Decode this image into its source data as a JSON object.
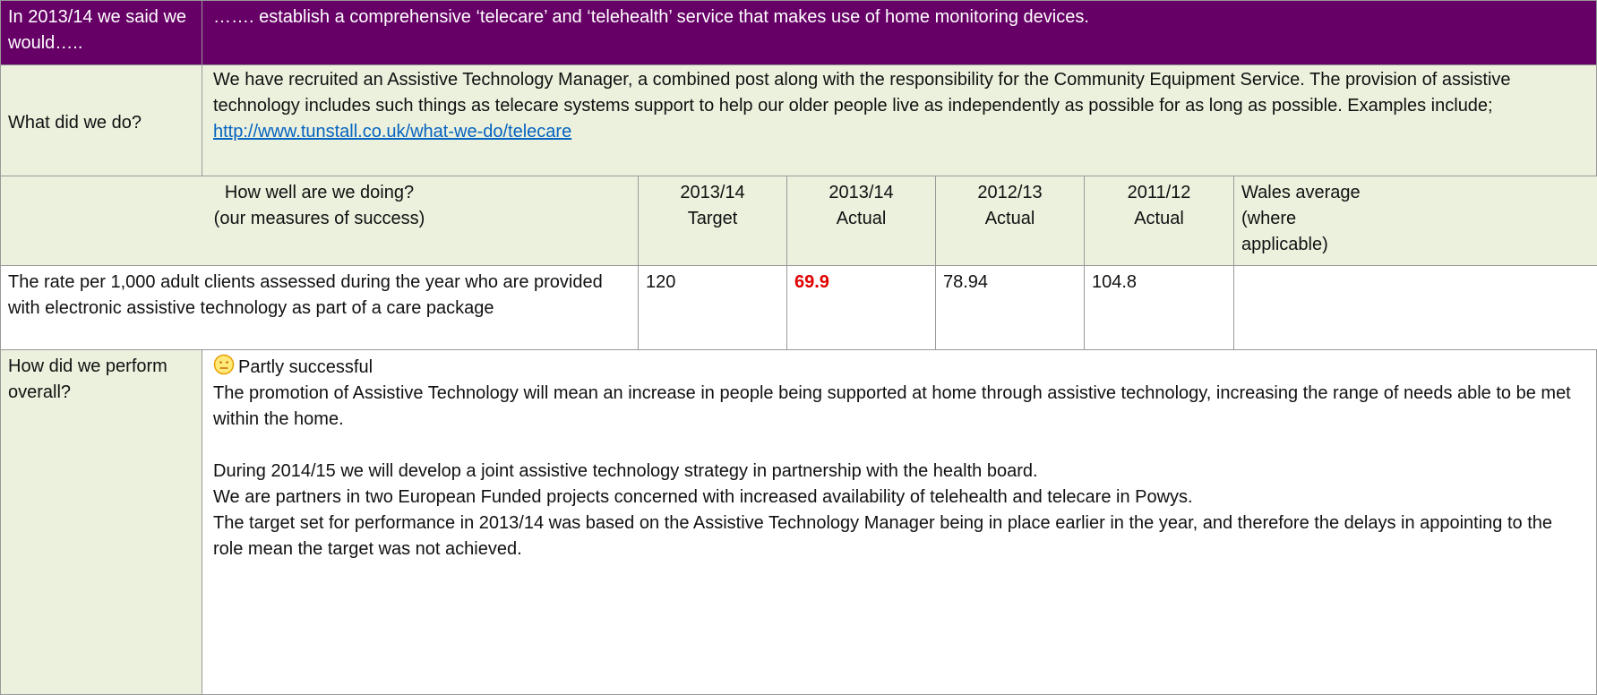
{
  "header": {
    "label": "In 2013/14 we said we would…..",
    "text": "……. establish a comprehensive ‘telecare’ and ‘telehealth’ service that makes use of home monitoring devices."
  },
  "what_we_did": {
    "label": "What did we do?",
    "text": "We have recruited an Assistive Technology Manager, a combined post along with the responsibility for the Community Equipment Service. The provision of assistive technology includes such things as telecare systems support to help our older people live as independently as possible for as long as possible.  Examples include; ",
    "link": "http://www.tunstall.co.uk/what-we-do/telecare"
  },
  "measures": {
    "title": [
      "How well are we doing?",
      "(our measures of success)"
    ],
    "columns": [
      [
        "2013/14",
        "Target"
      ],
      [
        "2013/14",
        "Actual"
      ],
      [
        "2012/13",
        "Actual"
      ],
      [
        "2011/12",
        "Actual"
      ],
      [
        "Wales average",
        "(where",
        "applicable)"
      ]
    ],
    "rows": [
      {
        "measure": "The rate per 1,000 adult clients assessed during the year who are provided with electronic assistive technology as part of a care package",
        "values": [
          120,
          69.9,
          78.94,
          104.8
        ]
      }
    ]
  },
  "overall": {
    "label": "How did we perform overall?",
    "status": "Partly successful",
    "paragraphs": [
      "The promotion of Assistive Technology will mean an increase in people being supported at home through assistive technology, increasing the range of needs able to be met within the home.",
      "During 2014/15 we will develop a joint assistive technology strategy in partnership with the health board.",
      "We are partners in two European Funded projects concerned with increased availability of telehealth and telecare in Powys.",
      "The target set for performance in 2013/14 was based on the Assistive Technology Manager being in place earlier in the year, and therefore the delays in appointing to the role mean the target was not achieved."
    ]
  }
}
